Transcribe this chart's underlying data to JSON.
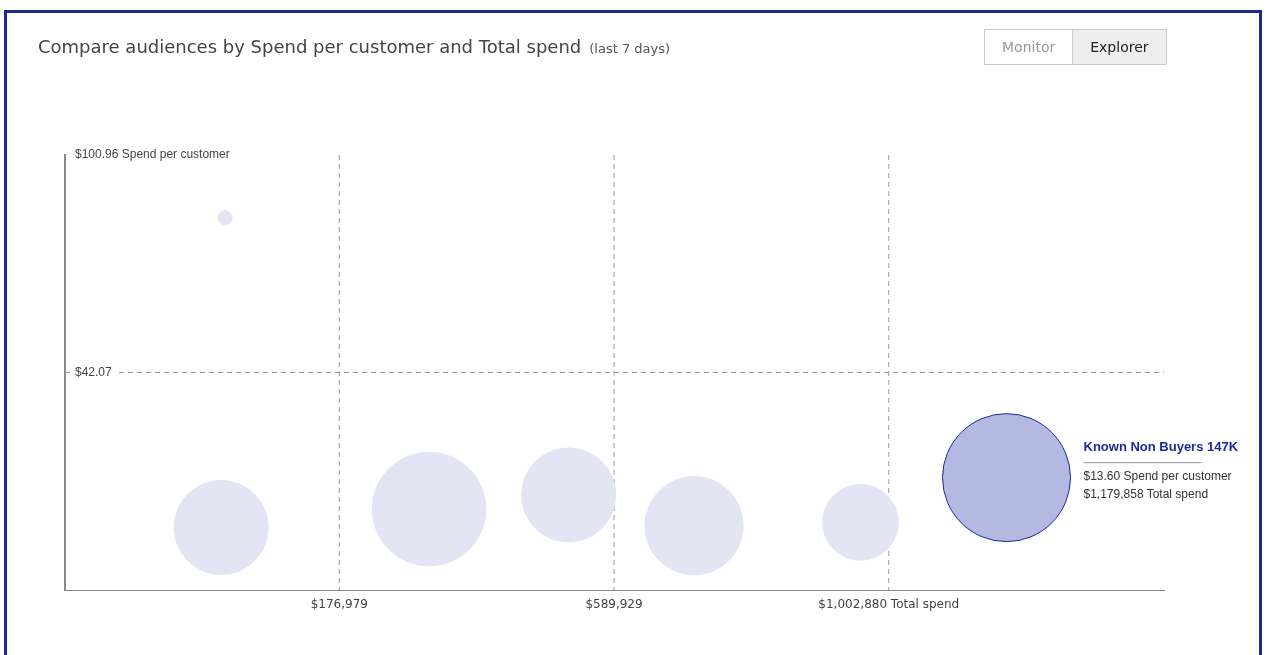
{
  "chart_data": {
    "type": "bubble",
    "title": "Compare audiences by Spend per customer and Total spend",
    "subtitle": "(last 7 days)",
    "x": [
      5340,
      -500,
      311943,
      521724,
      710223,
      960337,
      1179858
    ],
    "values": [
      84.0,
      0.1,
      5.1,
      8.9,
      0.6,
      1.5,
      13.6
    ],
    "sizes": [
      0.012,
      0.54,
      0.79,
      0.54,
      0.59,
      0.35,
      1
    ],
    "colors": [
      "#e3e5f4",
      "#e3e5f4",
      "#e3e5f4",
      "#e3e5f4",
      "#e3e5f4",
      "#e3e5f4",
      "#b3b9e0"
    ],
    "xlim": [
      -235248,
      1416574
    ],
    "xticks": [
      {
        "value": 176979,
        "label": "$176,979"
      },
      {
        "value": 589929,
        "label": "$589,929"
      },
      {
        "value": 1002880,
        "label": "$1,002,880 Total spend"
      }
    ],
    "ylim": [
      -16.82,
      100.96
    ],
    "yticks": [
      {
        "value": 100.96,
        "label": "$100.96 Spend per customer"
      },
      {
        "value": 42.07,
        "label": "$42.07"
      }
    ],
    "grid": true,
    "line_style": "dashed",
    "annotations": [
      "Monitor",
      "Explorer",
      "Known Non Buyers 147K",
      "$13.60 Spend per customer",
      "$1,179,858 Total spend"
    ]
  }
}
